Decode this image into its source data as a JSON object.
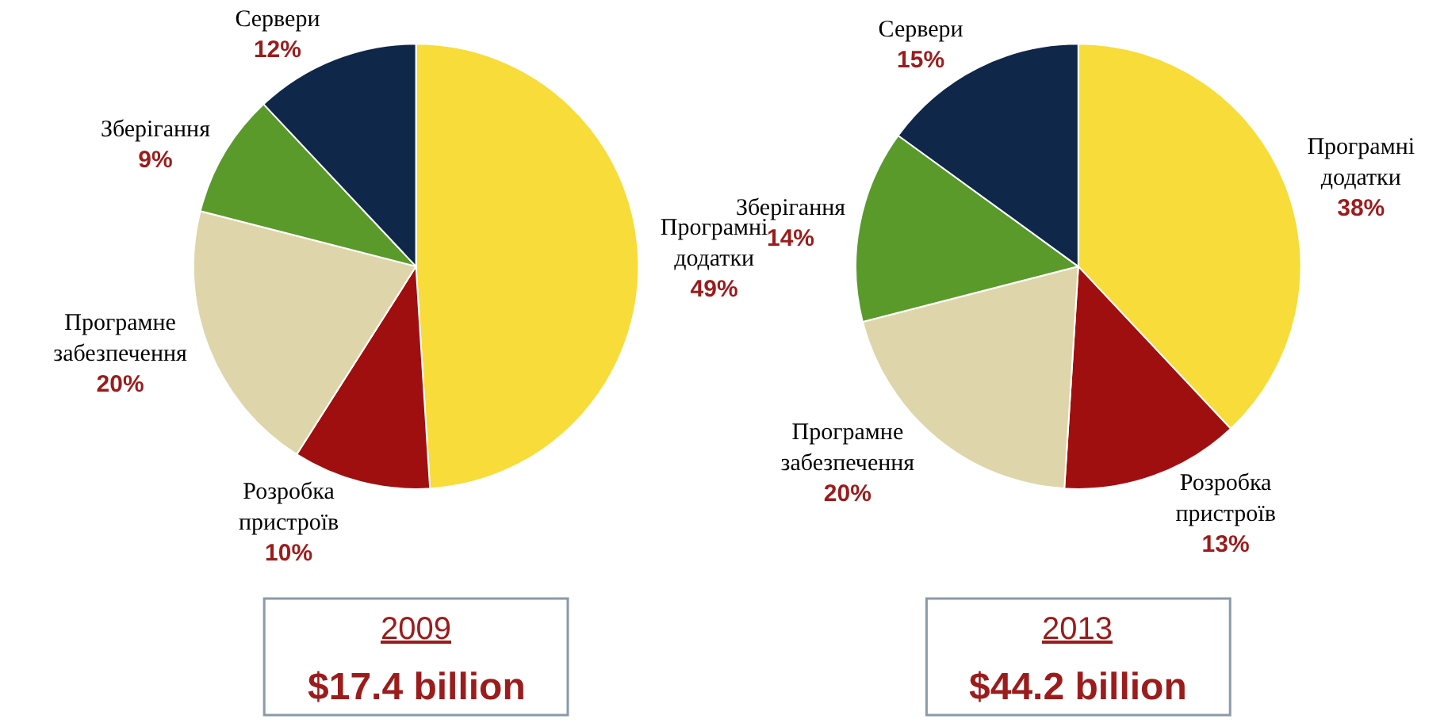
{
  "chart_data": [
    {
      "type": "pie",
      "title": "2009",
      "subtitle": "$17.4 billion",
      "legend": false,
      "categories": [
        "Програмні додатки",
        "Розробка пристроїв",
        "Програмне забезпечення",
        "Зберігання",
        "Сервери"
      ],
      "values": [
        49,
        10,
        20,
        9,
        12
      ],
      "value_labels": [
        "49%",
        "10%",
        "20%",
        "9%",
        "12%"
      ],
      "colors": [
        "#f7dc3a",
        "#a00f10",
        "#ded6aa",
        "#5a9a2a",
        "#0f2748"
      ]
    },
    {
      "type": "pie",
      "title": "2013",
      "subtitle": "$44.2 billion",
      "legend": false,
      "categories": [
        "Програмні додатки",
        "Розробка пристроїв",
        "Програмне забезпечення",
        "Зберігання",
        "Сервери"
      ],
      "values": [
        38,
        13,
        20,
        14,
        15
      ],
      "value_labels": [
        "38%",
        "13%",
        "20%",
        "14%",
        "15%"
      ],
      "colors": [
        "#f7dc3a",
        "#a00f10",
        "#ded6aa",
        "#5a9a2a",
        "#0f2748"
      ]
    }
  ]
}
